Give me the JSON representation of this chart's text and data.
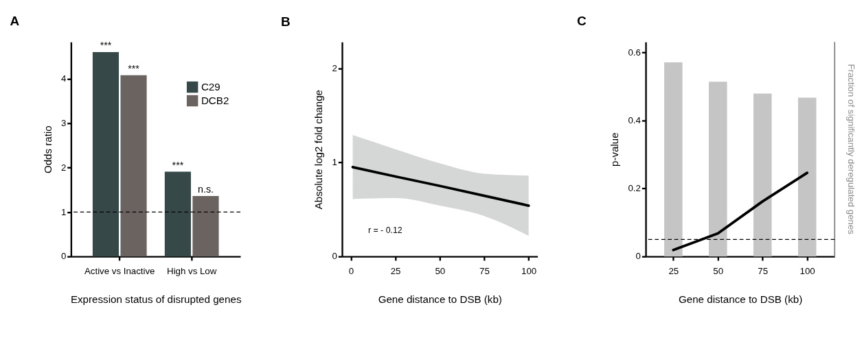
{
  "chart_data": [
    {
      "type": "bar",
      "title": "A",
      "xlabel": "Expression status of disrupted genes",
      "ylabel": "Odds ratio",
      "categories": [
        "Active vs Inactive",
        "High vs Low"
      ],
      "series": [
        {
          "name": "C29",
          "color": "#374848",
          "values": [
            4.6,
            1.91
          ],
          "value_labels": [
            "***",
            "***"
          ]
        },
        {
          "name": "DCB2",
          "color": "#6b6360",
          "values": [
            4.08,
            1.36
          ],
          "value_labels": [
            "***",
            "n.s."
          ]
        }
      ],
      "ylim": [
        0,
        4.83
      ],
      "yticks": [
        0,
        1,
        2,
        3,
        4
      ],
      "legend": "top right",
      "grid": false,
      "ref_lines": [
        {
          "axis": "y",
          "value": 1,
          "line_style": "dashed",
          "color": "#000000"
        }
      ]
    },
    {
      "type": "line",
      "title": "B",
      "xlabel": "Gene distance to DSB (kb)",
      "ylabel": "Absolute  log2 fold change",
      "x": [
        1,
        25,
        50,
        75,
        100
      ],
      "series": [
        {
          "color": "#000000",
          "values": [
            0.95,
            0.85,
            0.75,
            0.645,
            0.54
          ],
          "lower": [
            0.61,
            0.62,
            0.54,
            0.43,
            0.22
          ],
          "upper": [
            1.29,
            1.14,
            0.99,
            0.88,
            0.86
          ]
        }
      ],
      "xlim": [
        -5,
        105
      ],
      "xticks": [
        0,
        25,
        50,
        75,
        100
      ],
      "ylim": [
        0,
        2.28
      ],
      "yticks": [
        0,
        1,
        2
      ],
      "grid": false,
      "annotations": [
        "r = - 0.12"
      ]
    },
    {
      "type": "line",
      "title": "C",
      "xlabel": "Gene distance to DSB (kb)",
      "ylabel": "p-value",
      "y2label": "Fraction of significantly deregulated genes",
      "x": [
        25,
        50,
        75,
        100
      ],
      "series": [
        {
          "type": "bar",
          "color": "#c4c5c4",
          "values": [
            0.571,
            0.514,
            0.479,
            0.467
          ]
        },
        {
          "type": "line",
          "color": "#000000",
          "values": [
            0.019,
            0.068,
            0.162,
            0.246
          ]
        }
      ],
      "xlim": [
        9.5,
        115.4
      ],
      "xticks": [
        25,
        50,
        75,
        100
      ],
      "ylim": [
        0,
        0.631
      ],
      "yticks": [
        0,
        0.2,
        0.4,
        0.6
      ],
      "grid": false,
      "ref_lines": [
        {
          "axis": "y",
          "value": 0.05,
          "line_style": "dashed",
          "color": "#000000"
        }
      ]
    }
  ]
}
